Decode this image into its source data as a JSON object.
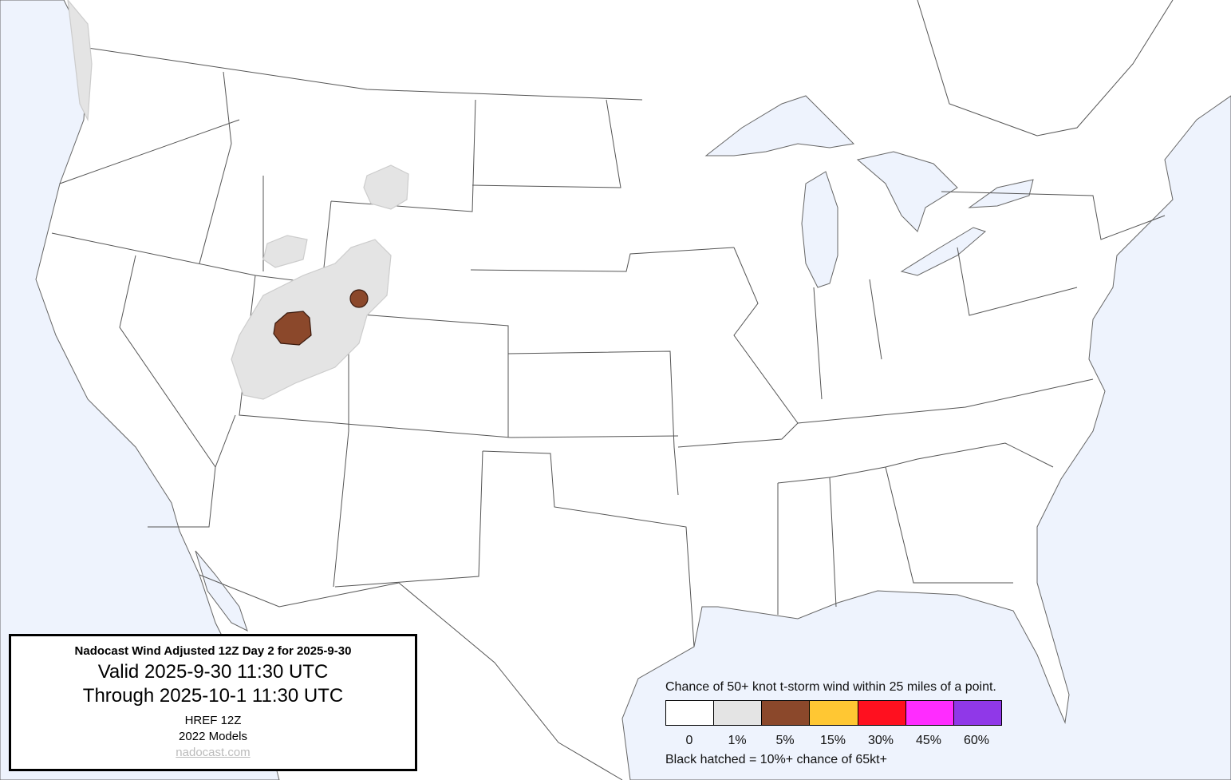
{
  "title_box": {
    "title": "Nadocast Wind Adjusted 12Z Day 2 for 2025-9-30",
    "valid": "Valid 2025-9-30 11:30 UTC",
    "through": "Through 2025-10-1 11:30 UTC",
    "model": "HREF 12Z",
    "models_year": "2022 Models",
    "link": "nadocast.com"
  },
  "legend": {
    "caption": "Chance of 50+ knot t-storm wind within 25 miles of a point.",
    "bins": [
      {
        "label": "0",
        "color": "#ffffff"
      },
      {
        "label": "1%",
        "color": "#e4e4e4"
      },
      {
        "label": "5%",
        "color": "#8b482b"
      },
      {
        "label": "15%",
        "color": "#ffc733"
      },
      {
        "label": "30%",
        "color": "#ff101f"
      },
      {
        "label": "45%",
        "color": "#ff2cff"
      },
      {
        "label": "60%",
        "color": "#9038e8"
      }
    ],
    "note": "Black hatched = 10%+ chance of 65kt+"
  },
  "colors": {
    "water": "#eef3fd",
    "land": "#ffffff",
    "borders": "#555555"
  },
  "forecast_areas": [
    {
      "region": "Utah / Wyoming / Idaho / Montana",
      "probability": "1%"
    },
    {
      "region": "Northern Utah",
      "probability": "5%"
    },
    {
      "region": "Southwest Wyoming",
      "probability": "5%"
    }
  ]
}
